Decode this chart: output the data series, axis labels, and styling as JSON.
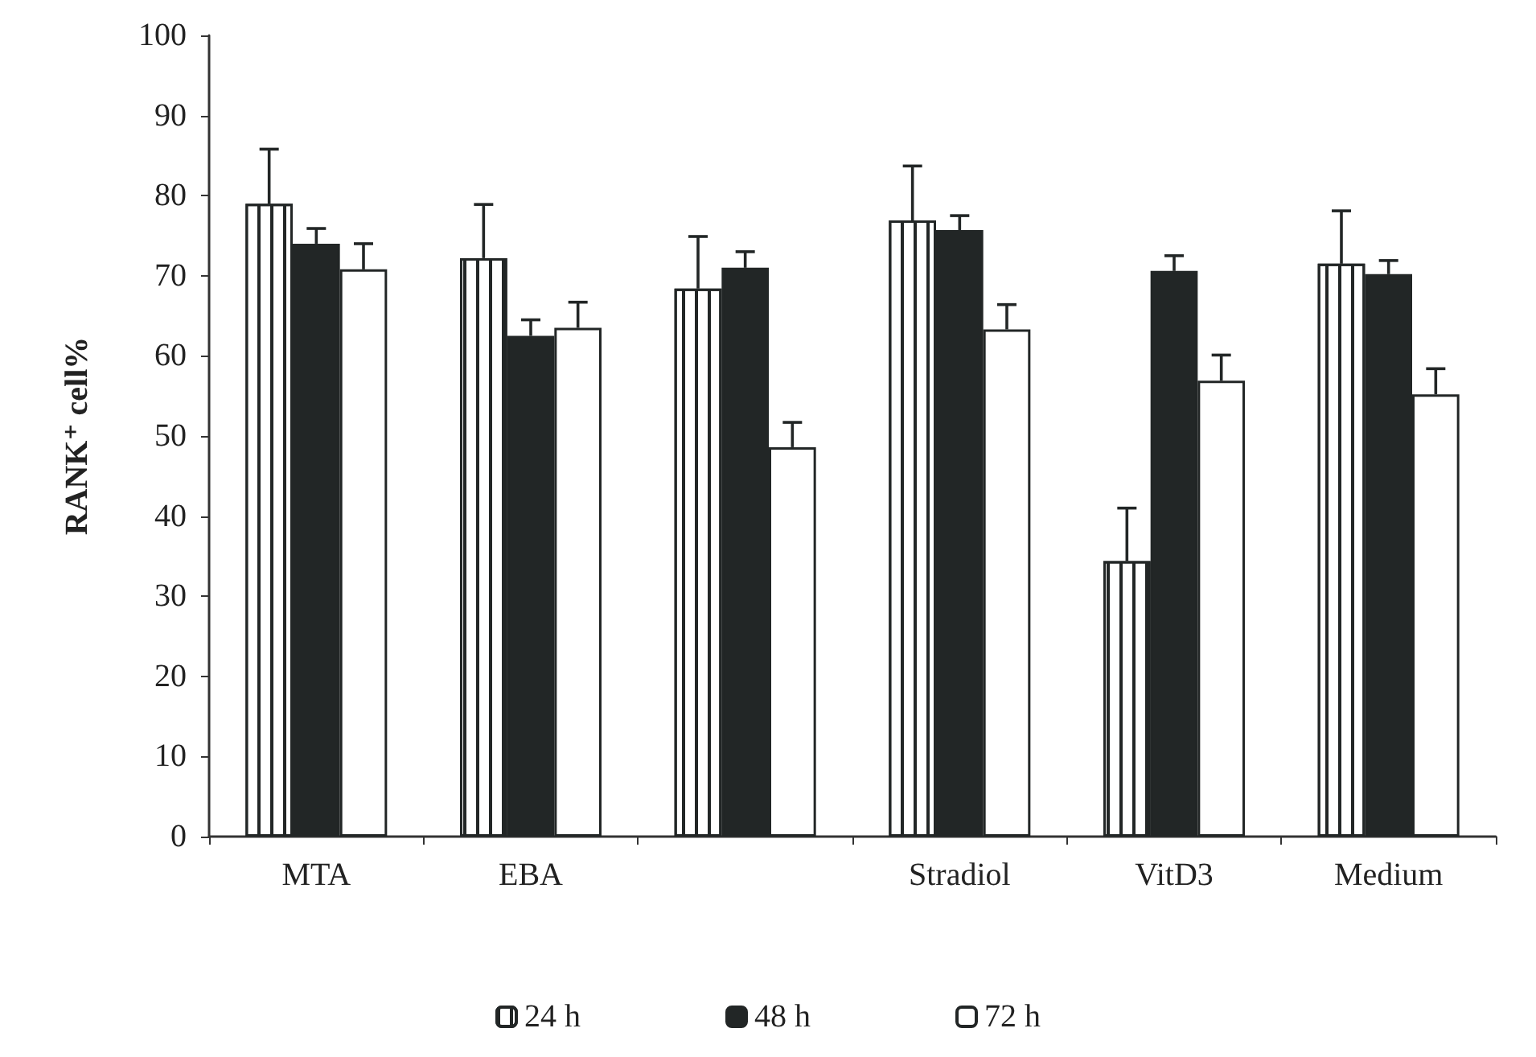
{
  "chart_data": {
    "type": "bar",
    "ylabel": "RANK⁺ cell%",
    "categories": [
      "MTA",
      "EBA",
      null,
      "Stradiol",
      "VitD3",
      "Medium"
    ],
    "series": [
      {
        "name": "24 h",
        "color": "#ffffff",
        "values": [
          79,
          72.2,
          68.4,
          76.9,
          34.4,
          71.5
        ],
        "errors": [
          6.8,
          6.7,
          6.5,
          6.8,
          6.6,
          6.6
        ]
      },
      {
        "name": "48 h",
        "color": "#222626",
        "values": [
          74,
          62.5,
          71,
          75.7,
          70.6,
          70.2
        ],
        "errors": [
          1.9,
          2,
          2,
          1.8,
          1.9,
          1.7
        ]
      },
      {
        "name": "72 h",
        "color": "#ffffff",
        "values": [
          70.8,
          63.5,
          48.6,
          63.3,
          56.9,
          55.2
        ],
        "errors": [
          3.2,
          3.2,
          3.1,
          3.1,
          3.2,
          3.2
        ]
      }
    ],
    "ylim": [
      0,
      100
    ],
    "yticks": [
      0,
      10,
      20,
      30,
      40,
      50,
      60,
      70,
      80,
      90,
      100
    ],
    "grid": false,
    "legend": "bottom"
  }
}
